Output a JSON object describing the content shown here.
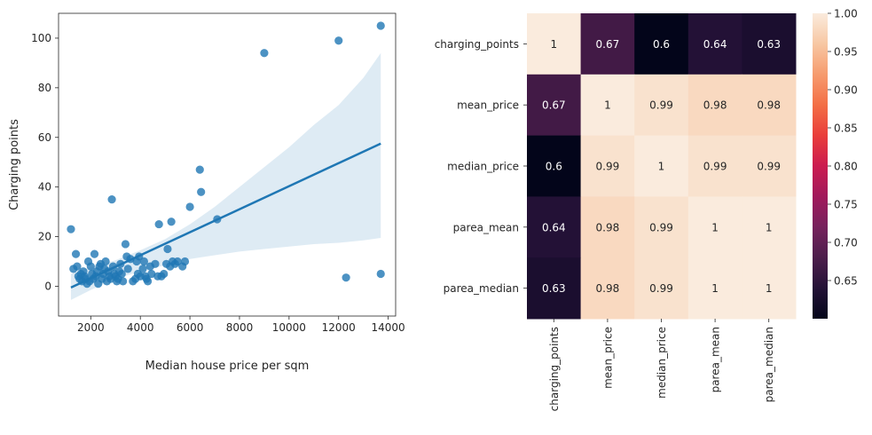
{
  "chart_data": [
    {
      "type": "scatter",
      "title": "",
      "xlabel": "Median house price per sqm",
      "ylabel": "Charging points",
      "xlim": [
        700,
        14300
      ],
      "ylim": [
        -12,
        110
      ],
      "xticks": [
        2000,
        4000,
        6000,
        8000,
        10000,
        12000,
        14000
      ],
      "yticks": [
        0,
        20,
        40,
        60,
        80,
        100
      ],
      "grid": false,
      "colors": {
        "points": "#1f77b4",
        "line": "#1f77b4",
        "band": "#1f77b4"
      },
      "points": [
        [
          1200,
          23
        ],
        [
          1300,
          7
        ],
        [
          1400,
          13
        ],
        [
          1450,
          8
        ],
        [
          1500,
          4
        ],
        [
          1550,
          3
        ],
        [
          1600,
          5
        ],
        [
          1650,
          2
        ],
        [
          1700,
          6
        ],
        [
          1750,
          4
        ],
        [
          1800,
          3
        ],
        [
          1850,
          1
        ],
        [
          1900,
          10
        ],
        [
          1950,
          2
        ],
        [
          2000,
          8
        ],
        [
          2050,
          5
        ],
        [
          2100,
          3
        ],
        [
          2150,
          13
        ],
        [
          2200,
          4
        ],
        [
          2250,
          6
        ],
        [
          2300,
          1
        ],
        [
          2350,
          8
        ],
        [
          2400,
          9
        ],
        [
          2450,
          3
        ],
        [
          2500,
          5
        ],
        [
          2550,
          7
        ],
        [
          2600,
          10
        ],
        [
          2650,
          2
        ],
        [
          2700,
          6
        ],
        [
          2750,
          4
        ],
        [
          2800,
          3
        ],
        [
          2850,
          35
        ],
        [
          2900,
          8
        ],
        [
          2950,
          5
        ],
        [
          3000,
          4
        ],
        [
          3050,
          2
        ],
        [
          3100,
          3
        ],
        [
          3150,
          6
        ],
        [
          3200,
          9
        ],
        [
          3250,
          5
        ],
        [
          3300,
          2
        ],
        [
          3400,
          17
        ],
        [
          3450,
          12
        ],
        [
          3500,
          7
        ],
        [
          3600,
          11
        ],
        [
          3700,
          2
        ],
        [
          3800,
          3
        ],
        [
          3850,
          10
        ],
        [
          3900,
          5
        ],
        [
          3950,
          12
        ],
        [
          4000,
          4
        ],
        [
          4100,
          7
        ],
        [
          4150,
          10
        ],
        [
          4200,
          4
        ],
        [
          4250,
          3
        ],
        [
          4300,
          2
        ],
        [
          4400,
          8
        ],
        [
          4450,
          5
        ],
        [
          4600,
          9
        ],
        [
          4700,
          4
        ],
        [
          4750,
          25
        ],
        [
          4850,
          4
        ],
        [
          4950,
          5
        ],
        [
          5050,
          9
        ],
        [
          5100,
          15
        ],
        [
          5200,
          8
        ],
        [
          5250,
          26
        ],
        [
          5300,
          10
        ],
        [
          5400,
          9
        ],
        [
          5500,
          10
        ],
        [
          5700,
          8
        ],
        [
          5800,
          10
        ],
        [
          6000,
          32
        ],
        [
          6400,
          47
        ],
        [
          6450,
          38
        ],
        [
          7100,
          27
        ],
        [
          9000,
          94
        ],
        [
          12000,
          99
        ],
        [
          12300,
          3.5
        ],
        [
          13700,
          105
        ],
        [
          13700,
          5
        ]
      ],
      "regression": {
        "x": [
          1200,
          13700
        ],
        "y": [
          -0.5,
          57.5
        ]
      },
      "confidence_band": {
        "x": [
          1200,
          2000,
          3000,
          4000,
          5000,
          6000,
          7000,
          8000,
          9000,
          10000,
          11000,
          12000,
          13000,
          13700
        ],
        "upper": [
          5,
          7.5,
          10.5,
          14.5,
          19,
          25,
          32,
          40,
          48,
          56,
          65,
          73,
          84,
          94
        ],
        "lower": [
          -5.5,
          -1.5,
          3,
          6,
          8.5,
          11,
          12.5,
          14,
          15,
          16,
          17,
          17.5,
          18.5,
          19.5
        ]
      }
    },
    {
      "type": "heatmap",
      "title": "",
      "labels": [
        "charging_points",
        "mean_price",
        "median_price",
        "parea_mean",
        "parea_median"
      ],
      "annotations": [
        [
          "1",
          "0.67",
          "0.6",
          "0.64",
          "0.63"
        ],
        [
          "0.67",
          "1",
          "0.99",
          "0.98",
          "0.98"
        ],
        [
          "0.6",
          "0.99",
          "1",
          "0.99",
          "0.99"
        ],
        [
          "0.64",
          "0.98",
          "0.99",
          "1",
          "1"
        ],
        [
          "0.63",
          "0.98",
          "0.99",
          "1",
          "1"
        ]
      ],
      "matrix": [
        [
          1,
          0.67,
          0.6,
          0.64,
          0.63
        ],
        [
          0.67,
          1,
          0.99,
          0.98,
          0.98
        ],
        [
          0.6,
          0.99,
          1,
          0.99,
          0.99
        ],
        [
          0.64,
          0.98,
          0.99,
          1,
          1
        ],
        [
          0.63,
          0.98,
          0.99,
          1,
          1
        ]
      ],
      "colorbar": {
        "range": [
          0.6,
          1.0
        ],
        "ticks": [
          "0.65",
          "0.70",
          "0.75",
          "0.80",
          "0.85",
          "0.90",
          "0.95",
          "1.00"
        ],
        "tick_values": [
          0.65,
          0.7,
          0.75,
          0.8,
          0.85,
          0.9,
          0.95,
          1.0
        ]
      },
      "colormap": "rocket"
    }
  ]
}
